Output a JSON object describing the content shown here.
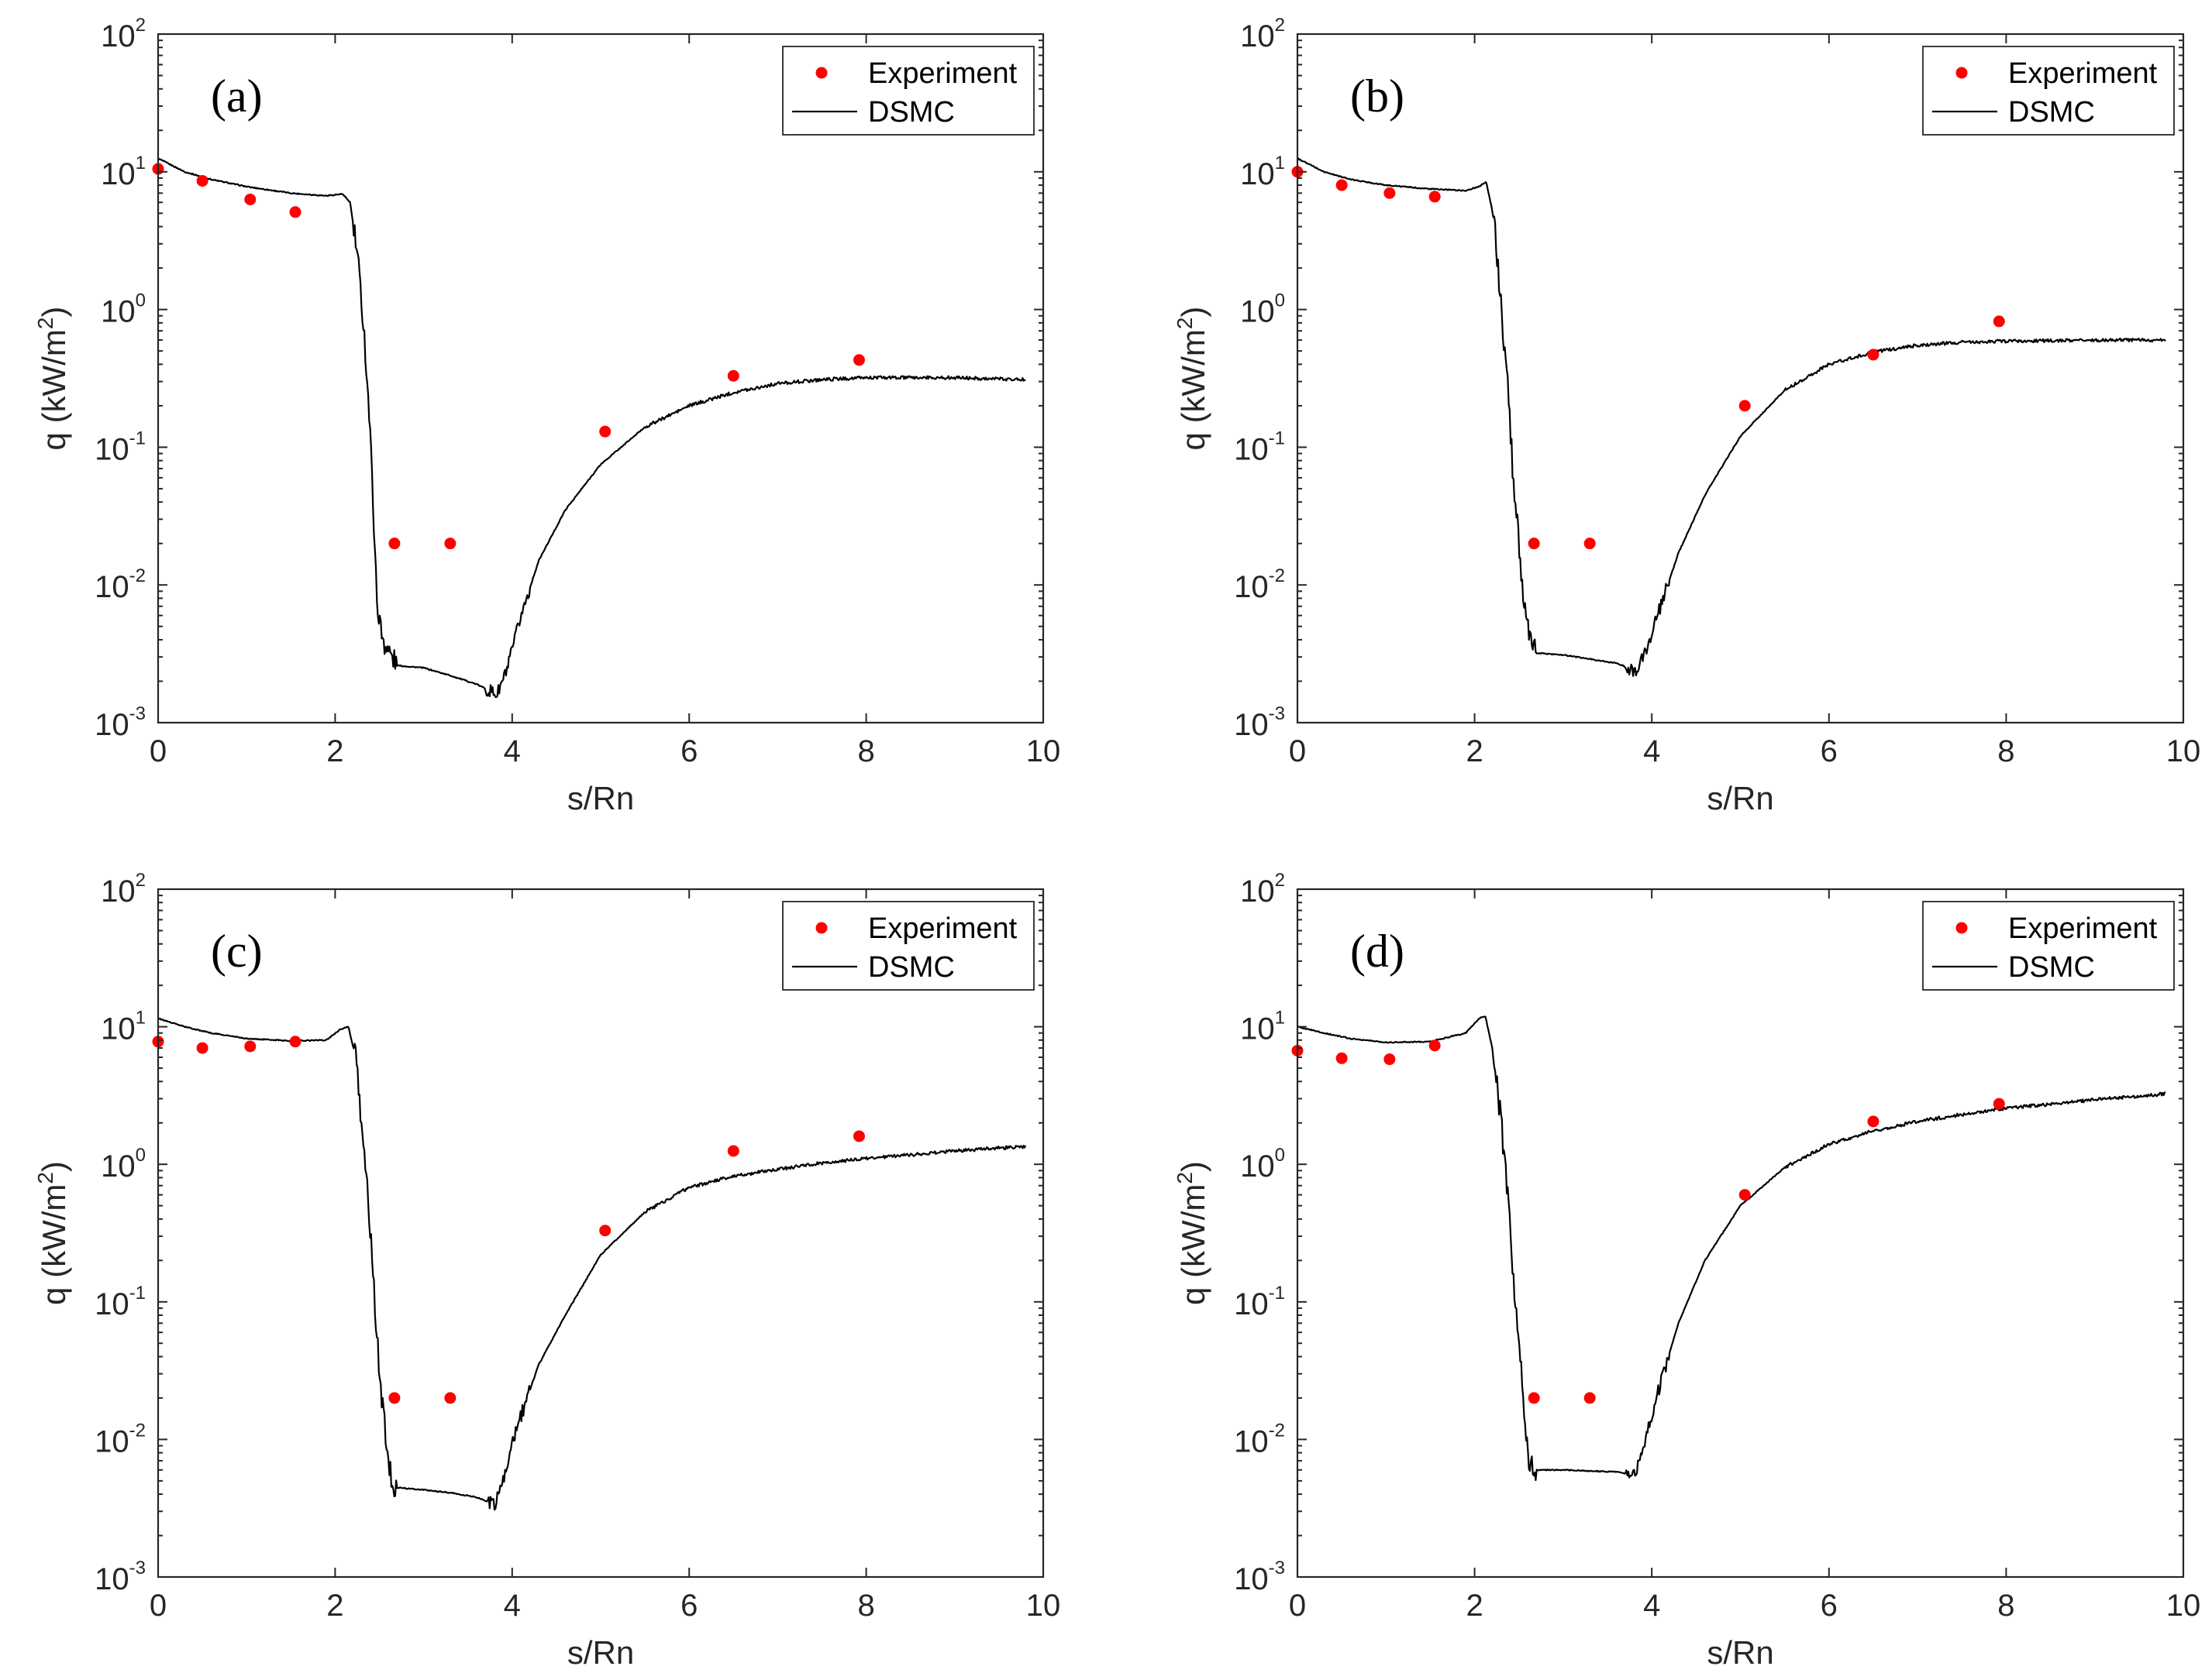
{
  "chart_data": [
    {
      "type": "line",
      "panel_label": "(a)",
      "xlabel": "s/Rn",
      "ylabel": "q (kW/m",
      "ylabel_sup": "2",
      "ylabel_close": ")",
      "yscale": "log",
      "xlim": [
        0,
        10
      ],
      "ylim_exp": [
        -3,
        2
      ],
      "xticks": [
        "0",
        "2",
        "4",
        "6",
        "8",
        "10"
      ],
      "yticks": [
        {
          "base": "10",
          "exp": "-3"
        },
        {
          "base": "10",
          "exp": "-2"
        },
        {
          "base": "10",
          "exp": "-1"
        },
        {
          "base": "10",
          "exp": "0"
        },
        {
          "base": "10",
          "exp": "1"
        },
        {
          "base": "10",
          "exp": "2"
        }
      ],
      "legend": {
        "position": "top-right",
        "experiment": "Experiment",
        "dsmc": "DSMC"
      },
      "colors": {
        "experiment": "#ff0000",
        "dsmc": "#000000"
      },
      "series": [
        {
          "name": "Experiment",
          "x": [
            0.0,
            0.5,
            1.04,
            1.55,
            2.67,
            3.3,
            5.05,
            6.5,
            7.92
          ],
          "y": [
            10.5,
            8.6,
            6.3,
            5.1,
            0.02,
            0.02,
            0.13,
            0.33,
            0.43
          ]
        },
        {
          "name": "DSMC",
          "x": [
            0,
            0.3,
            0.6,
            1.0,
            1.5,
            1.9,
            2.08,
            2.17,
            2.25,
            2.32,
            2.38,
            2.43,
            2.47,
            2.52,
            2.58,
            2.7,
            3.0,
            3.3,
            3.6,
            3.75,
            3.83,
            3.95,
            4.1,
            4.3,
            4.6,
            5.0,
            5.5,
            6.0,
            6.5,
            7.0,
            7.5,
            8.0,
            9.0,
            9.8
          ],
          "y": [
            12.5,
            10.0,
            8.8,
            7.8,
            7.0,
            6.7,
            6.9,
            6.0,
            2.5,
            0.8,
            0.2,
            0.04,
            0.008,
            0.0045,
            0.0035,
            0.0026,
            0.0025,
            0.0022,
            0.0019,
            0.0017,
            0.0016,
            0.0025,
            0.006,
            0.015,
            0.035,
            0.075,
            0.14,
            0.2,
            0.25,
            0.29,
            0.31,
            0.32,
            0.32,
            0.31
          ]
        }
      ]
    },
    {
      "type": "line",
      "panel_label": "(b)",
      "xlabel": "s/Rn",
      "ylabel": "q (kW/m",
      "ylabel_sup": "2",
      "ylabel_close": ")",
      "yscale": "log",
      "xlim": [
        0,
        10
      ],
      "ylim_exp": [
        -3,
        2
      ],
      "xticks": [
        "0",
        "2",
        "4",
        "6",
        "8",
        "10"
      ],
      "yticks": [
        {
          "base": "10",
          "exp": "-3"
        },
        {
          "base": "10",
          "exp": "-2"
        },
        {
          "base": "10",
          "exp": "-1"
        },
        {
          "base": "10",
          "exp": "0"
        },
        {
          "base": "10",
          "exp": "1"
        },
        {
          "base": "10",
          "exp": "2"
        }
      ],
      "legend": {
        "position": "top-right",
        "experiment": "Experiment",
        "dsmc": "DSMC"
      },
      "colors": {
        "experiment": "#ff0000",
        "dsmc": "#000000"
      },
      "series": [
        {
          "name": "Experiment",
          "x": [
            0.0,
            0.5,
            1.04,
            1.55,
            2.67,
            3.3,
            5.05,
            6.5,
            7.92
          ],
          "y": [
            10.0,
            8.0,
            7.0,
            6.6,
            0.02,
            0.02,
            0.2,
            0.47,
            0.82
          ]
        },
        {
          "name": "DSMC",
          "x": [
            0,
            0.3,
            0.6,
            1.0,
            1.5,
            1.9,
            2.05,
            2.13,
            2.22,
            2.3,
            2.37,
            2.43,
            2.5,
            2.57,
            2.62,
            2.7,
            3.0,
            3.3,
            3.6,
            3.75,
            3.82,
            3.95,
            4.1,
            4.3,
            4.6,
            5.0,
            5.5,
            6.0,
            6.5,
            7.0,
            7.5,
            8.0,
            9.0,
            9.8
          ],
          "y": [
            12.5,
            10.0,
            8.8,
            8.0,
            7.5,
            7.3,
            7.8,
            8.5,
            4.5,
            1.0,
            0.3,
            0.07,
            0.02,
            0.006,
            0.004,
            0.0032,
            0.0031,
            0.0029,
            0.0027,
            0.0025,
            0.0023,
            0.0035,
            0.007,
            0.017,
            0.045,
            0.12,
            0.26,
            0.4,
            0.49,
            0.55,
            0.58,
            0.59,
            0.6,
            0.6
          ]
        }
      ]
    },
    {
      "type": "line",
      "panel_label": "(c)",
      "xlabel": "s/Rn",
      "ylabel": "q (kW/m",
      "ylabel_sup": "2",
      "ylabel_close": ")",
      "yscale": "log",
      "xlim": [
        0,
        10
      ],
      "ylim_exp": [
        -3,
        2
      ],
      "xticks": [
        "0",
        "2",
        "4",
        "6",
        "8",
        "10"
      ],
      "yticks": [
        {
          "base": "10",
          "exp": "-3"
        },
        {
          "base": "10",
          "exp": "-2"
        },
        {
          "base": "10",
          "exp": "-1"
        },
        {
          "base": "10",
          "exp": "0"
        },
        {
          "base": "10",
          "exp": "1"
        },
        {
          "base": "10",
          "exp": "2"
        }
      ],
      "legend": {
        "position": "top-right",
        "experiment": "Experiment",
        "dsmc": "DSMC"
      },
      "colors": {
        "experiment": "#ff0000",
        "dsmc": "#000000"
      },
      "series": [
        {
          "name": "Experiment",
          "x": [
            0.0,
            0.5,
            1.04,
            1.55,
            2.67,
            3.3,
            5.05,
            6.5,
            7.92
          ],
          "y": [
            7.8,
            7.0,
            7.2,
            7.8,
            0.02,
            0.02,
            0.33,
            1.25,
            1.6
          ]
        },
        {
          "name": "DSMC",
          "x": [
            0,
            0.3,
            0.6,
            1.0,
            1.5,
            1.9,
            2.05,
            2.15,
            2.23,
            2.3,
            2.37,
            2.43,
            2.5,
            2.55,
            2.6,
            2.65,
            3.0,
            3.3,
            3.6,
            3.75,
            3.8,
            3.9,
            4.05,
            4.3,
            4.6,
            5.0,
            5.5,
            6.0,
            6.5,
            7.0,
            7.5,
            8.0,
            9.0,
            9.8
          ],
          "y": [
            11.5,
            10.0,
            9.0,
            8.2,
            7.9,
            8.0,
            9.5,
            10.0,
            6.0,
            2.0,
            0.6,
            0.15,
            0.03,
            0.015,
            0.007,
            0.0045,
            0.0043,
            0.0041,
            0.0038,
            0.0035,
            0.0033,
            0.005,
            0.012,
            0.035,
            0.08,
            0.22,
            0.45,
            0.68,
            0.82,
            0.92,
            1.02,
            1.1,
            1.25,
            1.35
          ]
        }
      ]
    },
    {
      "type": "line",
      "panel_label": "(d)",
      "xlabel": "s/Rn",
      "ylabel": "q (kW/m",
      "ylabel_sup": "2",
      "ylabel_close": ")",
      "yscale": "log",
      "xlim": [
        0,
        10
      ],
      "ylim_exp": [
        -3,
        2
      ],
      "xticks": [
        "0",
        "2",
        "4",
        "6",
        "8",
        "10"
      ],
      "yticks": [
        {
          "base": "10",
          "exp": "-3"
        },
        {
          "base": "10",
          "exp": "-2"
        },
        {
          "base": "10",
          "exp": "-1"
        },
        {
          "base": "10",
          "exp": "0"
        },
        {
          "base": "10",
          "exp": "1"
        },
        {
          "base": "10",
          "exp": "2"
        }
      ],
      "legend": {
        "position": "top-right",
        "experiment": "Experiment",
        "dsmc": "DSMC"
      },
      "colors": {
        "experiment": "#ff0000",
        "dsmc": "#000000"
      },
      "series": [
        {
          "name": "Experiment",
          "x": [
            0.0,
            0.5,
            1.04,
            1.55,
            2.67,
            3.3,
            5.05,
            6.5,
            7.92
          ],
          "y": [
            6.7,
            5.9,
            5.8,
            7.3,
            0.02,
            0.02,
            0.6,
            2.05,
            2.75
          ]
        },
        {
          "name": "DSMC",
          "x": [
            0,
            0.3,
            0.6,
            1.0,
            1.5,
            1.9,
            2.05,
            2.12,
            2.2,
            2.3,
            2.38,
            2.45,
            2.5,
            2.55,
            2.6,
            2.65,
            3.0,
            3.3,
            3.6,
            3.75,
            3.82,
            3.9,
            4.05,
            4.3,
            4.6,
            5.0,
            5.5,
            6.0,
            6.5,
            7.0,
            7.5,
            8.0,
            9.0,
            9.8
          ],
          "y": [
            10.0,
            9.0,
            8.2,
            7.7,
            7.8,
            9.0,
            11.5,
            12.0,
            7.0,
            2.0,
            0.5,
            0.12,
            0.05,
            0.02,
            0.008,
            0.006,
            0.006,
            0.0059,
            0.0058,
            0.0056,
            0.0056,
            0.0085,
            0.02,
            0.07,
            0.2,
            0.5,
            0.95,
            1.4,
            1.75,
            2.05,
            2.3,
            2.55,
            2.95,
            3.25
          ]
        }
      ]
    }
  ]
}
